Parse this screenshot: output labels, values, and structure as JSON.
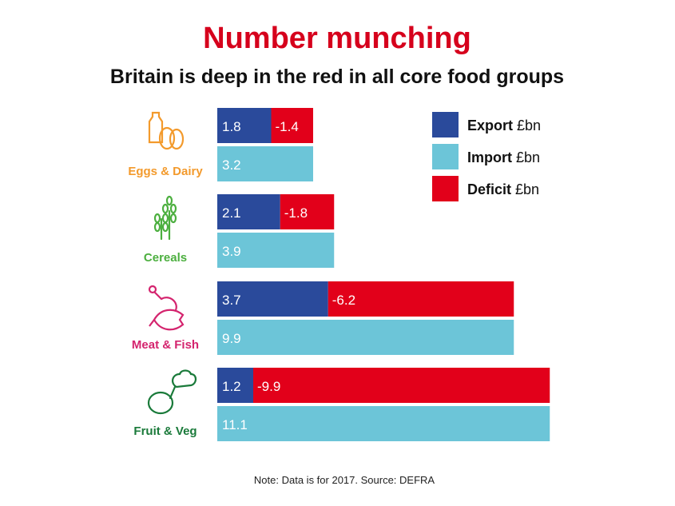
{
  "chart_data": {
    "type": "bar",
    "title": "Number munching",
    "subtitle": "Britain is deep in the red in all core food groups",
    "categories": [
      "Eggs & Dairy",
      "Cereals",
      "Meat & Fish",
      "Fruit & Veg"
    ],
    "category_icons": [
      "milk-eggs-icon",
      "wheat-icon",
      "chicken-fish-icon",
      "lemon-broccoli-icon"
    ],
    "category_colors": [
      "#f39a2c",
      "#4caf3f",
      "#d4246e",
      "#1a7a3a"
    ],
    "series": [
      {
        "name": "Export",
        "unit": "£bn",
        "color": "#2a4a9b",
        "values": [
          1.8,
          2.1,
          3.7,
          1.2
        ]
      },
      {
        "name": "Import",
        "unit": "£bn",
        "color": "#6cc5d8",
        "values": [
          3.2,
          3.9,
          9.9,
          11.1
        ]
      },
      {
        "name": "Deficit",
        "unit": "£bn",
        "color": "#e2001a",
        "values": [
          -1.4,
          -1.8,
          -6.2,
          -9.9
        ]
      }
    ],
    "value_labels": {
      "export": [
        "1.8",
        "2.1",
        "3.7",
        "1.2"
      ],
      "import": [
        "3.2",
        "3.9",
        "9.9",
        "11.1"
      ],
      "deficit": [
        "-1.4",
        "-1.8",
        "-6.2",
        "-9.9"
      ]
    },
    "legend": [
      {
        "bold": "Export",
        "unit": "£bn"
      },
      {
        "bold": "Import",
        "unit": "£bn"
      },
      {
        "bold": "Deficit",
        "unit": "£bn"
      }
    ],
    "legend_position": "top-right",
    "note": "Note: Data is for 2017. Source: DEFRA",
    "grid": false
  }
}
